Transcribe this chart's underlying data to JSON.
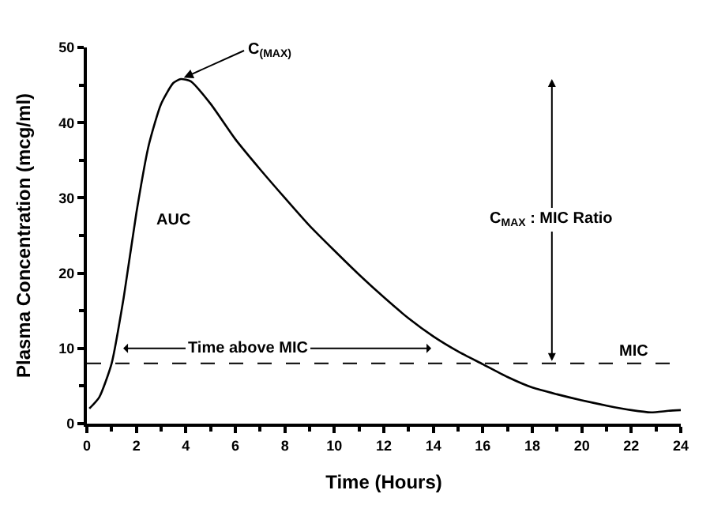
{
  "chart_data": {
    "type": "line",
    "xlabel": "Time (Hours)",
    "ylabel": "Plasma Concentration (mcg/ml)",
    "x": [
      0.1,
      0.5,
      1,
      1.5,
      2,
      2.5,
      3,
      3.5,
      3.8,
      4.2,
      5,
      6,
      7,
      8,
      9,
      10,
      11,
      12,
      13,
      14,
      15,
      16,
      17,
      18,
      19,
      20,
      21,
      22,
      22.8,
      23.5,
      24
    ],
    "series": [
      {
        "color": "#000000",
        "values": [
          2,
          3.5,
          8,
          17,
          28,
          37,
          42.5,
          45.3,
          45.8,
          45.5,
          42.5,
          37.8,
          33.8,
          30,
          26.3,
          23,
          19.8,
          16.8,
          14,
          11.6,
          9.6,
          7.9,
          6.2,
          4.8,
          3.9,
          3.1,
          2.4,
          1.8,
          1.5,
          1.7,
          1.8
        ]
      }
    ],
    "xlim": [
      0,
      24
    ],
    "xticks": [
      0,
      2,
      4,
      6,
      8,
      10,
      12,
      14,
      16,
      18,
      20,
      22,
      24
    ],
    "ylim": [
      0,
      50
    ],
    "yticks": [
      0,
      10,
      20,
      30,
      40,
      50
    ],
    "marker": "none",
    "line_style": "solid",
    "ref_lines": [
      {
        "axis": "y",
        "value": 8,
        "label": "MIC",
        "color": "#000000",
        "line_style": "dashed"
      }
    ],
    "annotations": [
      {
        "text": "C$_{(MAX)}$",
        "x": 3.8,
        "y": 45.8
      },
      "AUC",
      "Time above MIC",
      "C$_{MAX}$ : MIC Ratio"
    ]
  }
}
